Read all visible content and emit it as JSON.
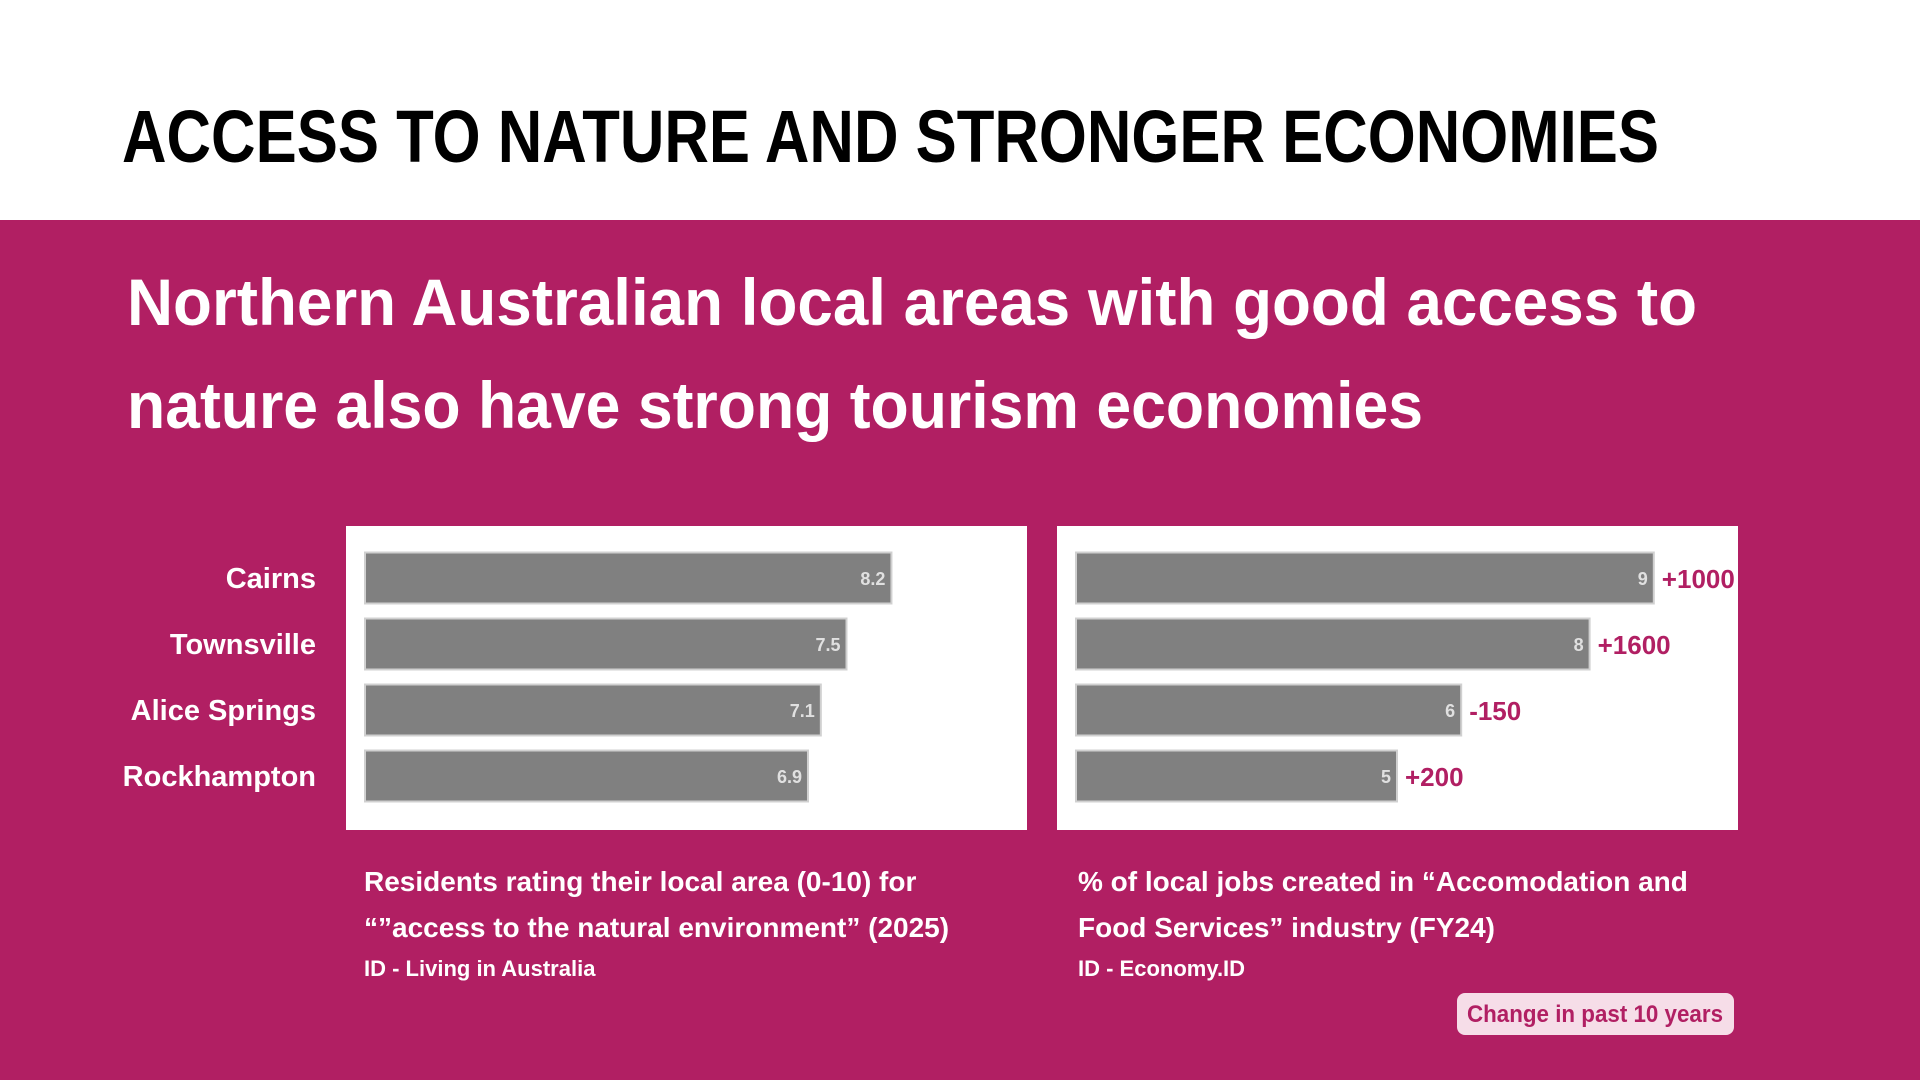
{
  "title": "ACCESS TO NATURE AND STRONGER ECONOMIES",
  "subtitle": [
    "Northern Australian local areas with good access to",
    "nature also have strong tourism economies"
  ],
  "chart_data": [
    {
      "type": "bar",
      "orientation": "horizontal",
      "categories": [
        "Cairns",
        "Townsville",
        "Alice Springs",
        "Rockhampton"
      ],
      "values": [
        8.2,
        7.5,
        7.1,
        6.9
      ],
      "color": "#808080",
      "xlim": [
        0,
        10
      ],
      "caption": [
        "Residents rating their local area (0-10) for",
        "“”access to the natural environment” (2025)"
      ],
      "source": "ID - Living in Australia"
    },
    {
      "type": "bar",
      "orientation": "horizontal",
      "values": [
        9,
        8,
        6,
        5
      ],
      "color": "#808080",
      "xlim": [
        0,
        10
      ],
      "change_values": [
        1000,
        1600,
        -150,
        200
      ],
      "change_labels": [
        "+1000",
        "+1600",
        "-150",
        "+200"
      ],
      "change_legend": "Change in past 10 years",
      "caption": [
        "% of local jobs created in “Accomodation and",
        "Food Services” industry (FY24)"
      ],
      "source": "ID - Economy.ID"
    }
  ]
}
